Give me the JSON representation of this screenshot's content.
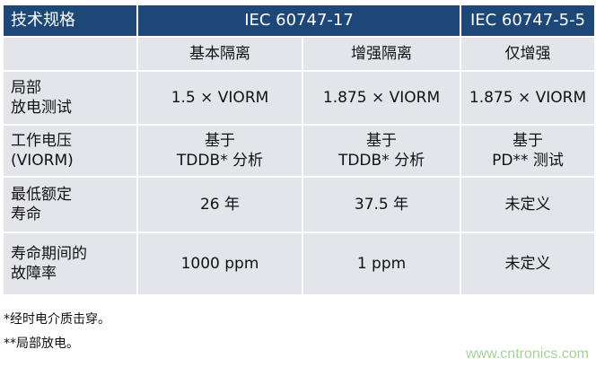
{
  "table": {
    "header": {
      "spec": "技术规格",
      "std1": "IEC 60747-17",
      "std2": "IEC 60747-5-5"
    },
    "subheader": [
      "",
      "基本隔离",
      "增强隔离",
      "仅增强"
    ],
    "rows": [
      {
        "label": [
          "局部",
          "放电测试"
        ],
        "values": [
          "1.5 × VIORM",
          "1.875 × VIORM",
          "1.875 × VIORM"
        ]
      },
      {
        "label": [
          "工作电压",
          "(VIORM)"
        ],
        "values": [
          [
            "基于",
            "TDDB* 分析"
          ],
          [
            "基于",
            "TDDB* 分析"
          ],
          [
            "基于",
            "PD** 测试"
          ]
        ]
      },
      {
        "label": [
          "最低额定",
          "寿命"
        ],
        "values": [
          "26 年",
          "37.5 年",
          "未定义"
        ]
      },
      {
        "label": [
          "寿命期间的",
          "故障率"
        ],
        "values": [
          "1000 ppm",
          "1 ppm",
          "未定义"
        ]
      }
    ]
  },
  "footnotes": [
    "*经时电介质击穿。",
    "**局部放电。"
  ],
  "watermark": "www.cntronics.com"
}
